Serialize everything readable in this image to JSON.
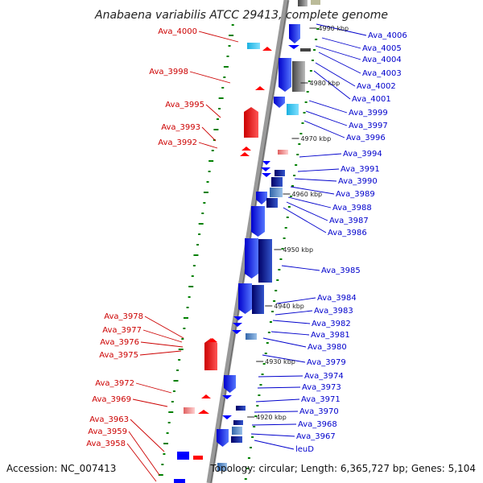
{
  "title": "Anabaena variabilis ATCC 29413, complete genome",
  "footer": {
    "accession": "Accession: NC_007413",
    "topology": "Topology: circular; Length: 6,365,727 bp; Genes: 5,104"
  },
  "colors": {
    "forward": "#ff0000",
    "reverse": "#0000ff",
    "axis": "#888888",
    "gc_dots": "#008000",
    "left_label": "#cc0000",
    "right_label": "#0000cc"
  },
  "kbp_marks": [
    "4990 kbp",
    "4980 kbp",
    "4970 kbp",
    "4960 kbp",
    "4950 kbp",
    "4940 kbp",
    "4930 kbp",
    "4920 kbp"
  ],
  "left_labels": [
    "Ava_4000",
    "Ava_3998",
    "Ava_3995",
    "Ava_3993",
    "Ava_3992",
    "Ava_3978",
    "Ava_3977",
    "Ava_3976",
    "Ava_3975",
    "Ava_3972",
    "Ava_3969",
    "Ava_3963",
    "Ava_3959",
    "Ava_3958"
  ],
  "right_labels": [
    "Ava_4006",
    "Ava_4005",
    "Ava_4004",
    "Ava_4003",
    "Ava_4002",
    "Ava_4001",
    "Ava_3999",
    "Ava_3997",
    "Ava_3996",
    "Ava_3994",
    "Ava_3991",
    "Ava_3990",
    "Ava_3989",
    "Ava_3988",
    "Ava_3987",
    "Ava_3986",
    "Ava_3985",
    "Ava_3984",
    "Ava_3983",
    "Ava_3982",
    "Ava_3981",
    "Ava_3980",
    "Ava_3979",
    "Ava_3974",
    "Ava_3973",
    "Ava_3971",
    "Ava_3970",
    "Ava_3968",
    "Ava_3967",
    "leuD"
  ]
}
